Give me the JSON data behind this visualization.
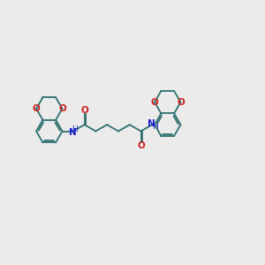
{
  "background_color": "#ebebeb",
  "bond_color": "#2e7070",
  "nitrogen_color": "#2020cc",
  "oxygen_color": "#cc2020",
  "lw": 1.3,
  "figsize": [
    3.0,
    3.0
  ],
  "dpi": 100,
  "xlim": [
    0,
    10
  ],
  "ylim": [
    2.5,
    7.5
  ]
}
